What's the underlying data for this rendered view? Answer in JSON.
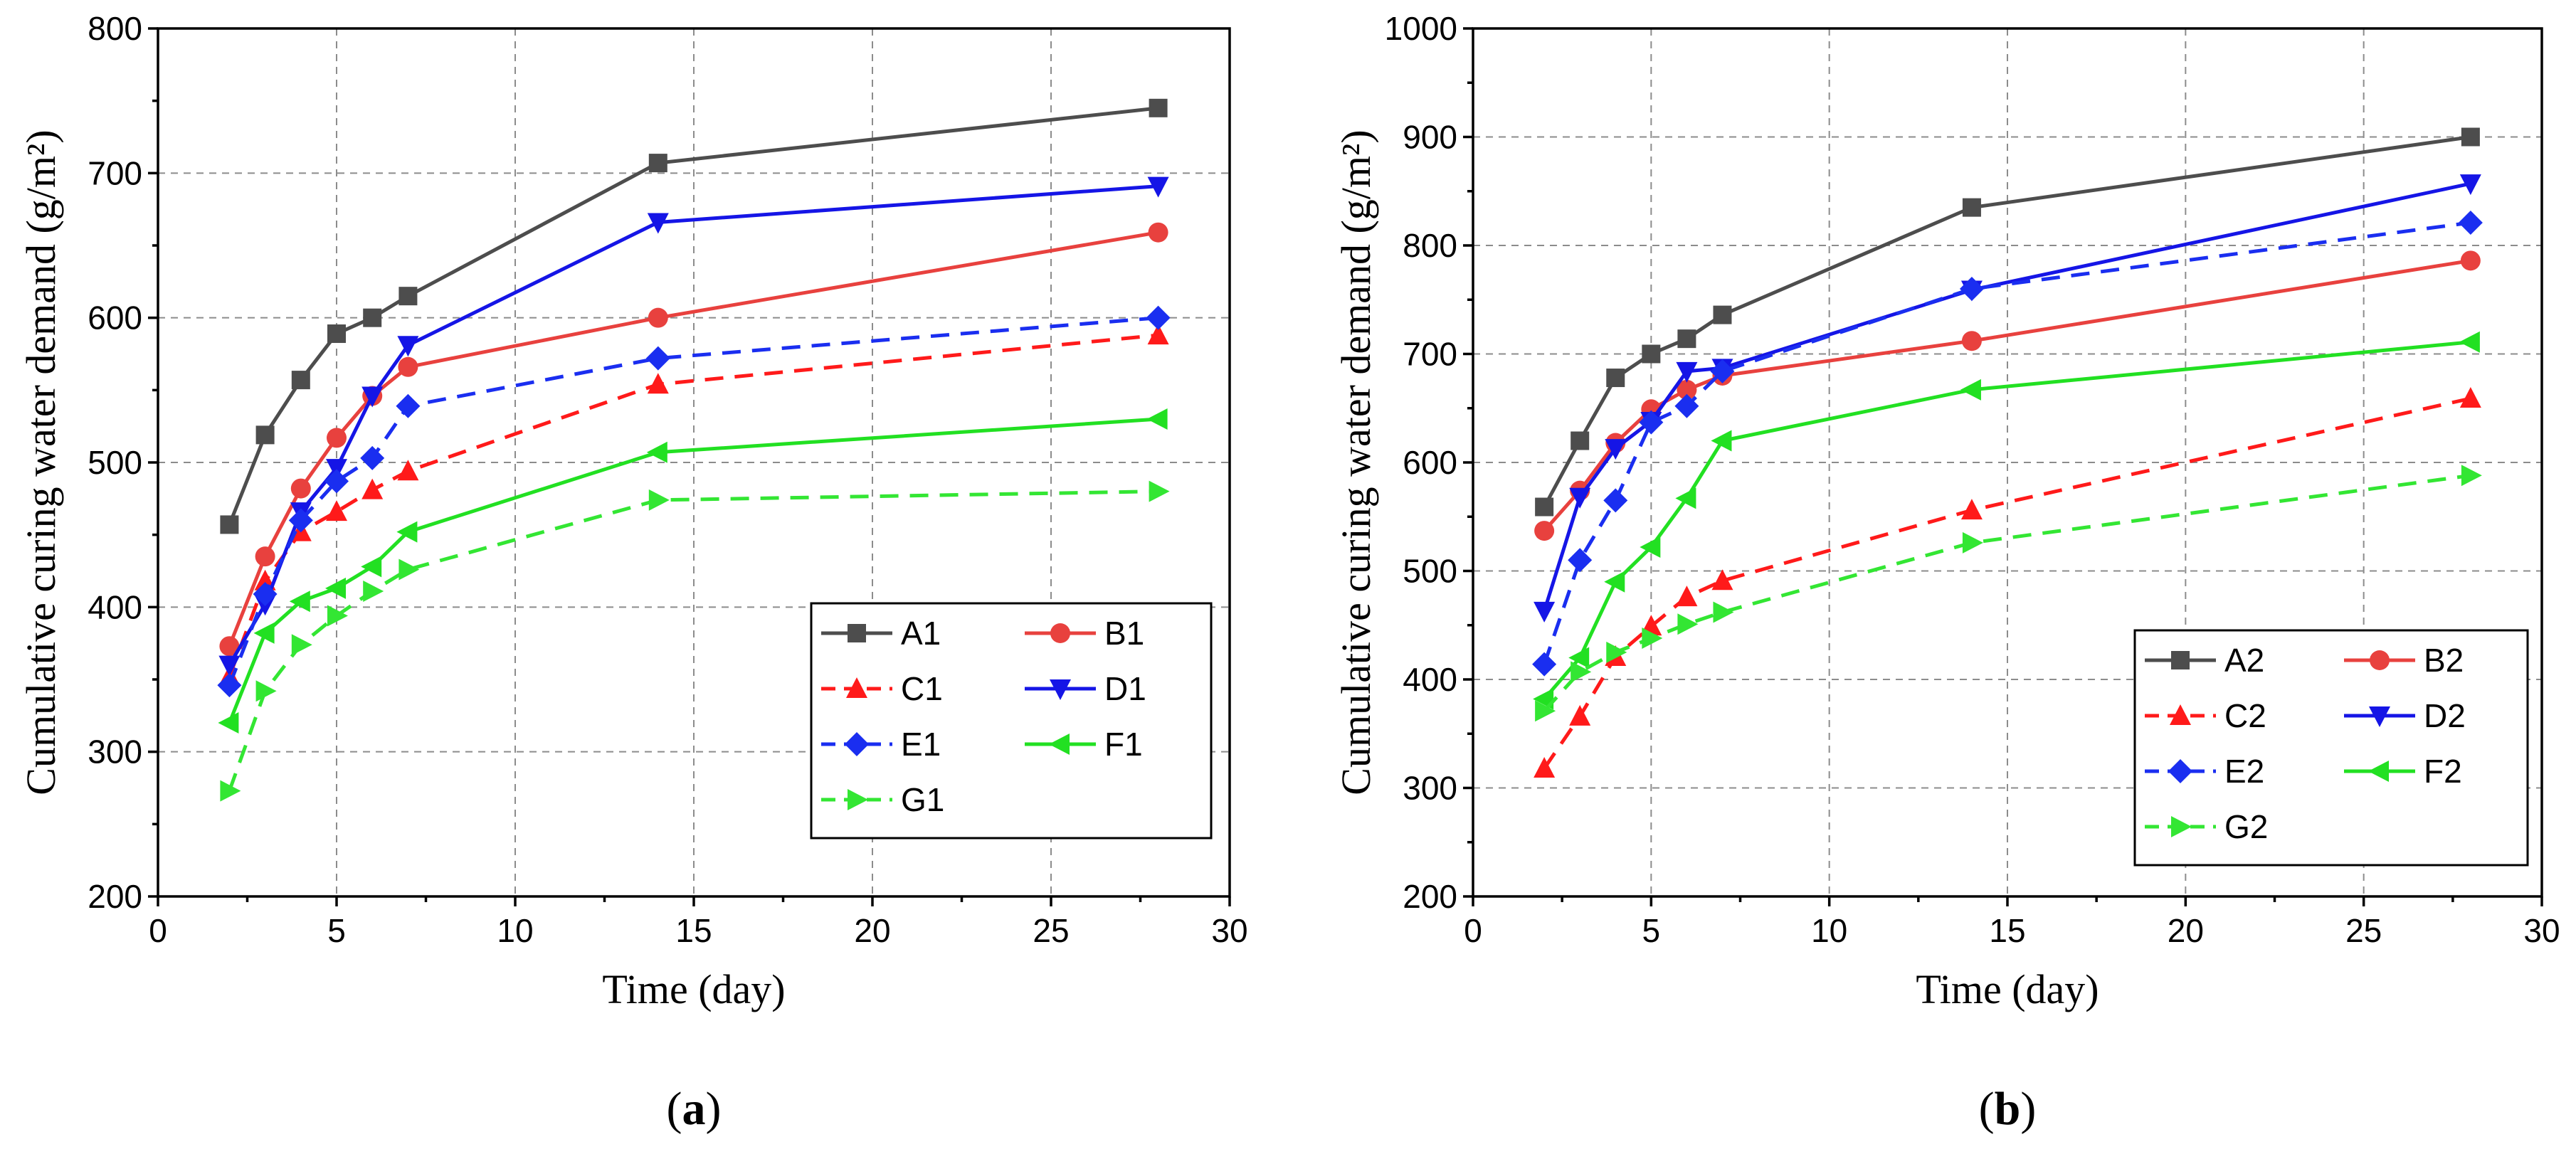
{
  "chart_data": [
    {
      "type": "line",
      "panel_label": "(a)",
      "panel_letter": "a",
      "xlabel": "Time (day)",
      "ylabel": "Cumulative curing water demand  (g/m²)",
      "xlim": [
        0,
        30
      ],
      "ylim": [
        200,
        800
      ],
      "xticks": [
        0,
        5,
        10,
        15,
        20,
        25,
        30
      ],
      "yticks": [
        200,
        300,
        400,
        500,
        600,
        700,
        800
      ],
      "grid": true,
      "legend_position": "lower-right",
      "x": [
        2,
        3,
        4,
        5,
        6,
        7,
        14,
        28
      ],
      "series": [
        {
          "name": "A1",
          "color": "#4d4d4d",
          "dash": "solid",
          "marker": "square",
          "values": [
            457,
            519,
            557,
            589,
            600,
            615,
            707,
            745
          ]
        },
        {
          "name": "B1",
          "color": "#e8413e",
          "dash": "solid",
          "marker": "circle",
          "values": [
            373,
            435,
            482,
            517,
            546,
            566,
            600,
            659
          ]
        },
        {
          "name": "C1",
          "color": "#ff1a1a",
          "dash": "dashed",
          "marker": "triangle-up",
          "values": [
            352,
            418,
            452,
            466,
            481,
            494,
            554,
            588
          ]
        },
        {
          "name": "D1",
          "color": "#1515e6",
          "dash": "solid",
          "marker": "triangle-down",
          "values": [
            360,
            402,
            466,
            496,
            546,
            581,
            666,
            691
          ]
        },
        {
          "name": "E1",
          "color": "#1a2ef0",
          "dash": "dashed",
          "marker": "diamond",
          "values": [
            346,
            409,
            460,
            487,
            503,
            539,
            572,
            600
          ]
        },
        {
          "name": "F1",
          "color": "#22e022",
          "dash": "solid",
          "marker": "triangle-left",
          "values": [
            320,
            382,
            404,
            413,
            428,
            452,
            507,
            530
          ]
        },
        {
          "name": "G1",
          "color": "#33e633",
          "dash": "dashed",
          "marker": "triangle-right",
          "values": [
            273,
            342,
            374,
            394,
            411,
            426,
            474,
            480
          ]
        }
      ]
    },
    {
      "type": "line",
      "panel_label": "(b)",
      "panel_letter": "b",
      "xlabel": "Time (day)",
      "ylabel": "Cumulative curing water demand  (g/m²)",
      "xlim": [
        0,
        30
      ],
      "ylim": [
        200,
        1000
      ],
      "xticks": [
        0,
        5,
        10,
        15,
        20,
        25,
        30
      ],
      "yticks": [
        200,
        300,
        400,
        500,
        600,
        700,
        800,
        900,
        1000
      ],
      "grid": true,
      "legend_position": "lower-right",
      "x": [
        2,
        3,
        4,
        5,
        6,
        7,
        14,
        28
      ],
      "series": [
        {
          "name": "A2",
          "color": "#4d4d4d",
          "dash": "solid",
          "marker": "square",
          "values": [
            559,
            620,
            678,
            700,
            714,
            736,
            835,
            900
          ]
        },
        {
          "name": "B2",
          "color": "#e8413e",
          "dash": "solid",
          "marker": "circle",
          "values": [
            537,
            574,
            618,
            649,
            667,
            680,
            712,
            786
          ]
        },
        {
          "name": "C2",
          "color": "#ff1a1a",
          "dash": "dashed",
          "marker": "triangle-up",
          "values": [
            318,
            366,
            421,
            449,
            476,
            491,
            556,
            659
          ]
        },
        {
          "name": "D2",
          "color": "#1515e6",
          "dash": "solid",
          "marker": "triangle-down",
          "values": [
            463,
            568,
            613,
            638,
            684,
            687,
            759,
            857
          ]
        },
        {
          "name": "E2",
          "color": "#1a2ef0",
          "dash": "dashed",
          "marker": "diamond",
          "values": [
            414,
            510,
            565,
            637,
            652,
            684,
            760,
            821
          ]
        },
        {
          "name": "F2",
          "color": "#22e022",
          "dash": "solid",
          "marker": "triangle-left",
          "values": [
            382,
            420,
            490,
            522,
            567,
            620,
            667,
            711
          ]
        },
        {
          "name": "G2",
          "color": "#33e633",
          "dash": "dashed",
          "marker": "triangle-right",
          "values": [
            371,
            407,
            425,
            438,
            451,
            462,
            526,
            588
          ]
        }
      ]
    }
  ]
}
